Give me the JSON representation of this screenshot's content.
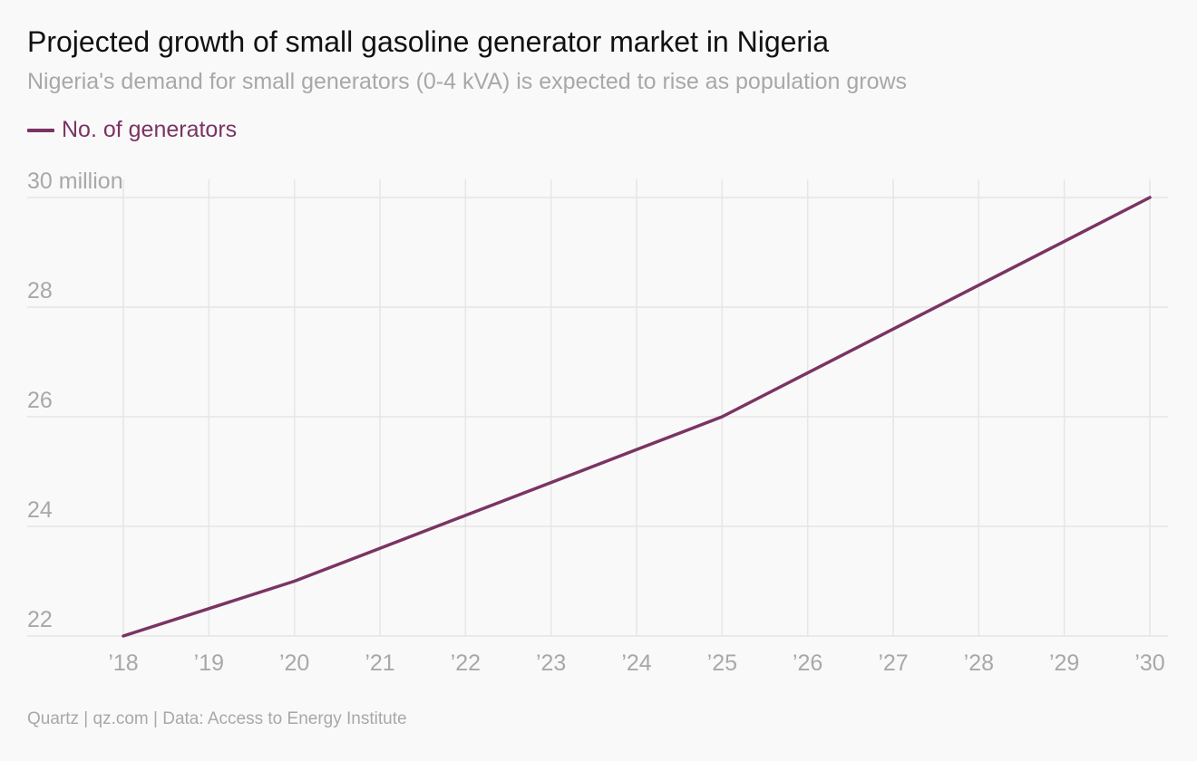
{
  "title": "Projected growth of small gasoline generator market in Nigeria",
  "subtitle": "Nigeria's demand for small generators (0-4 kVA) is expected to rise as population grows",
  "source": "Quartz | qz.com | Data: Access to Energy Institute",
  "colors": {
    "series": "#7a3463",
    "grid": "#e6e6e6",
    "muted_text": "#a8a8a8"
  },
  "chart_data": {
    "type": "line",
    "title": "Projected growth of small gasoline generator market in Nigeria",
    "subtitle": "Nigeria's demand for small generators (0-4 kVA) is expected to rise as population grows",
    "x": [
      2018,
      2019,
      2020,
      2021,
      2022,
      2023,
      2024,
      2025,
      2026,
      2027,
      2028,
      2029,
      2030
    ],
    "x_tick_labels": [
      "’18",
      "’19",
      "’20",
      "’21",
      "’22",
      "’23",
      "’24",
      "’25",
      "’26",
      "’27",
      "’28",
      "’29",
      "’30"
    ],
    "series": [
      {
        "name": "No. of generators",
        "color": "#7a3463",
        "values": [
          22,
          22.5,
          23,
          23.6,
          24.2,
          24.8,
          25.4,
          26,
          26.8,
          27.6,
          28.4,
          29.2,
          30
        ]
      }
    ],
    "y_ticks": [
      22,
      24,
      26,
      28,
      30
    ],
    "y_tick_labels": [
      "22",
      "24",
      "26",
      "28",
      "30 million"
    ],
    "ylim": [
      22,
      30
    ],
    "xlim": [
      2018,
      2030
    ],
    "grid": true,
    "legend_position": "top-left"
  }
}
